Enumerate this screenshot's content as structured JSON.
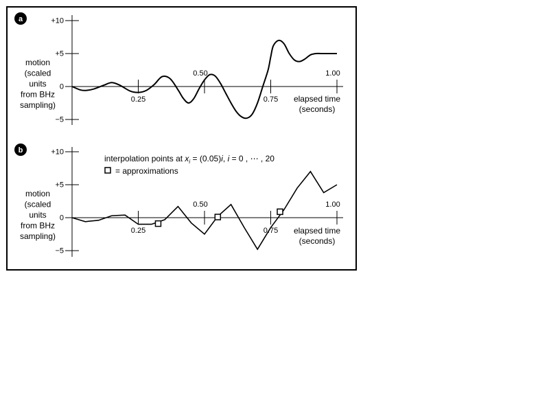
{
  "chart_data": [
    {
      "type": "line",
      "panel_label": "a",
      "ylabel": [
        "motion",
        "(scaled",
        "units",
        "from BHz",
        "sampling)"
      ],
      "xlabel": [
        "elapsed time",
        "(seconds)"
      ],
      "x_ticks": [
        "0.25",
        "0.50",
        "0.75",
        "1.00"
      ],
      "x_tick_values": [
        0.25,
        0.5,
        0.75,
        1.0
      ],
      "y_ticks": [
        "+10",
        "+5",
        "0",
        "−5"
      ],
      "y_tick_values": [
        10,
        5,
        0,
        -5
      ],
      "xlim": [
        0,
        1.0
      ],
      "ylim": [
        -5,
        10
      ],
      "series": [
        {
          "style": "smooth",
          "x": [
            0,
            0.03,
            0.05,
            0.08,
            0.12,
            0.15,
            0.18,
            0.22,
            0.25,
            0.28,
            0.31,
            0.34,
            0.37,
            0.4,
            0.42,
            0.44,
            0.46,
            0.48,
            0.5,
            0.52,
            0.54,
            0.56,
            0.58,
            0.6,
            0.62,
            0.64,
            0.66,
            0.68,
            0.7,
            0.72,
            0.74,
            0.75,
            0.76,
            0.78,
            0.8,
            0.82,
            0.84,
            0.86,
            0.88,
            0.9,
            0.92,
            0.94,
            0.96,
            0.98,
            1.0
          ],
          "y": [
            0,
            -0.5,
            -0.6,
            -0.4,
            0.2,
            0.6,
            0.2,
            -0.7,
            -0.9,
            -0.6,
            0.3,
            1.5,
            1.2,
            -0.5,
            -1.8,
            -2.5,
            -1.8,
            -0.3,
            1.0,
            1.8,
            1.6,
            0.5,
            -1.0,
            -2.5,
            -3.8,
            -4.6,
            -4.8,
            -4.2,
            -2.5,
            0,
            2.5,
            4.5,
            6.2,
            7.0,
            6.5,
            5.0,
            4.0,
            3.8,
            4.2,
            4.8,
            5.0,
            5.0,
            5.0,
            5.0,
            5.0
          ]
        }
      ]
    },
    {
      "type": "line",
      "panel_label": "b",
      "ylabel": [
        "motion",
        "(scaled",
        "units",
        "from BHz",
        "sampling)"
      ],
      "xlabel": [
        "elapsed time",
        "(seconds)"
      ],
      "x_ticks": [
        "0.25",
        "0.50",
        "0.75",
        "1.00"
      ],
      "x_tick_values": [
        0.25,
        0.5,
        0.75,
        1.0
      ],
      "y_ticks": [
        "+10",
        "+5",
        "0",
        "−5"
      ],
      "y_tick_values": [
        10,
        5,
        0,
        -5
      ],
      "xlim": [
        0,
        1.0
      ],
      "ylim": [
        -5,
        10
      ],
      "annotation": {
        "prefix": "interpolation points at ",
        "x": "x",
        "sub": "i",
        "middle": " = (0.05)",
        "i": "i",
        "suffix": ", ",
        "i2": "i",
        "tail": " = 0 , ⋯ , 20",
        "legend_marker": "square",
        "legend_text": "= approximations"
      },
      "series": [
        {
          "style": "polyline",
          "x": [
            0,
            0.05,
            0.1,
            0.15,
            0.2,
            0.25,
            0.3,
            0.35,
            0.4,
            0.45,
            0.5,
            0.55,
            0.6,
            0.65,
            0.7,
            0.75,
            0.8,
            0.85,
            0.9,
            0.95,
            1.0
          ],
          "y": [
            0,
            -0.6,
            -0.4,
            0.3,
            0.4,
            -1.0,
            -1.0,
            -0.3,
            1.7,
            -0.8,
            -2.5,
            0.2,
            2.0,
            -1.5,
            -4.8,
            -1.5,
            1.2,
            4.5,
            7.0,
            3.8,
            5.0
          ]
        }
      ],
      "approximations": {
        "x": [
          0.325,
          0.55,
          0.785
        ],
        "y": [
          -0.9,
          0.1,
          0.9
        ]
      }
    }
  ]
}
